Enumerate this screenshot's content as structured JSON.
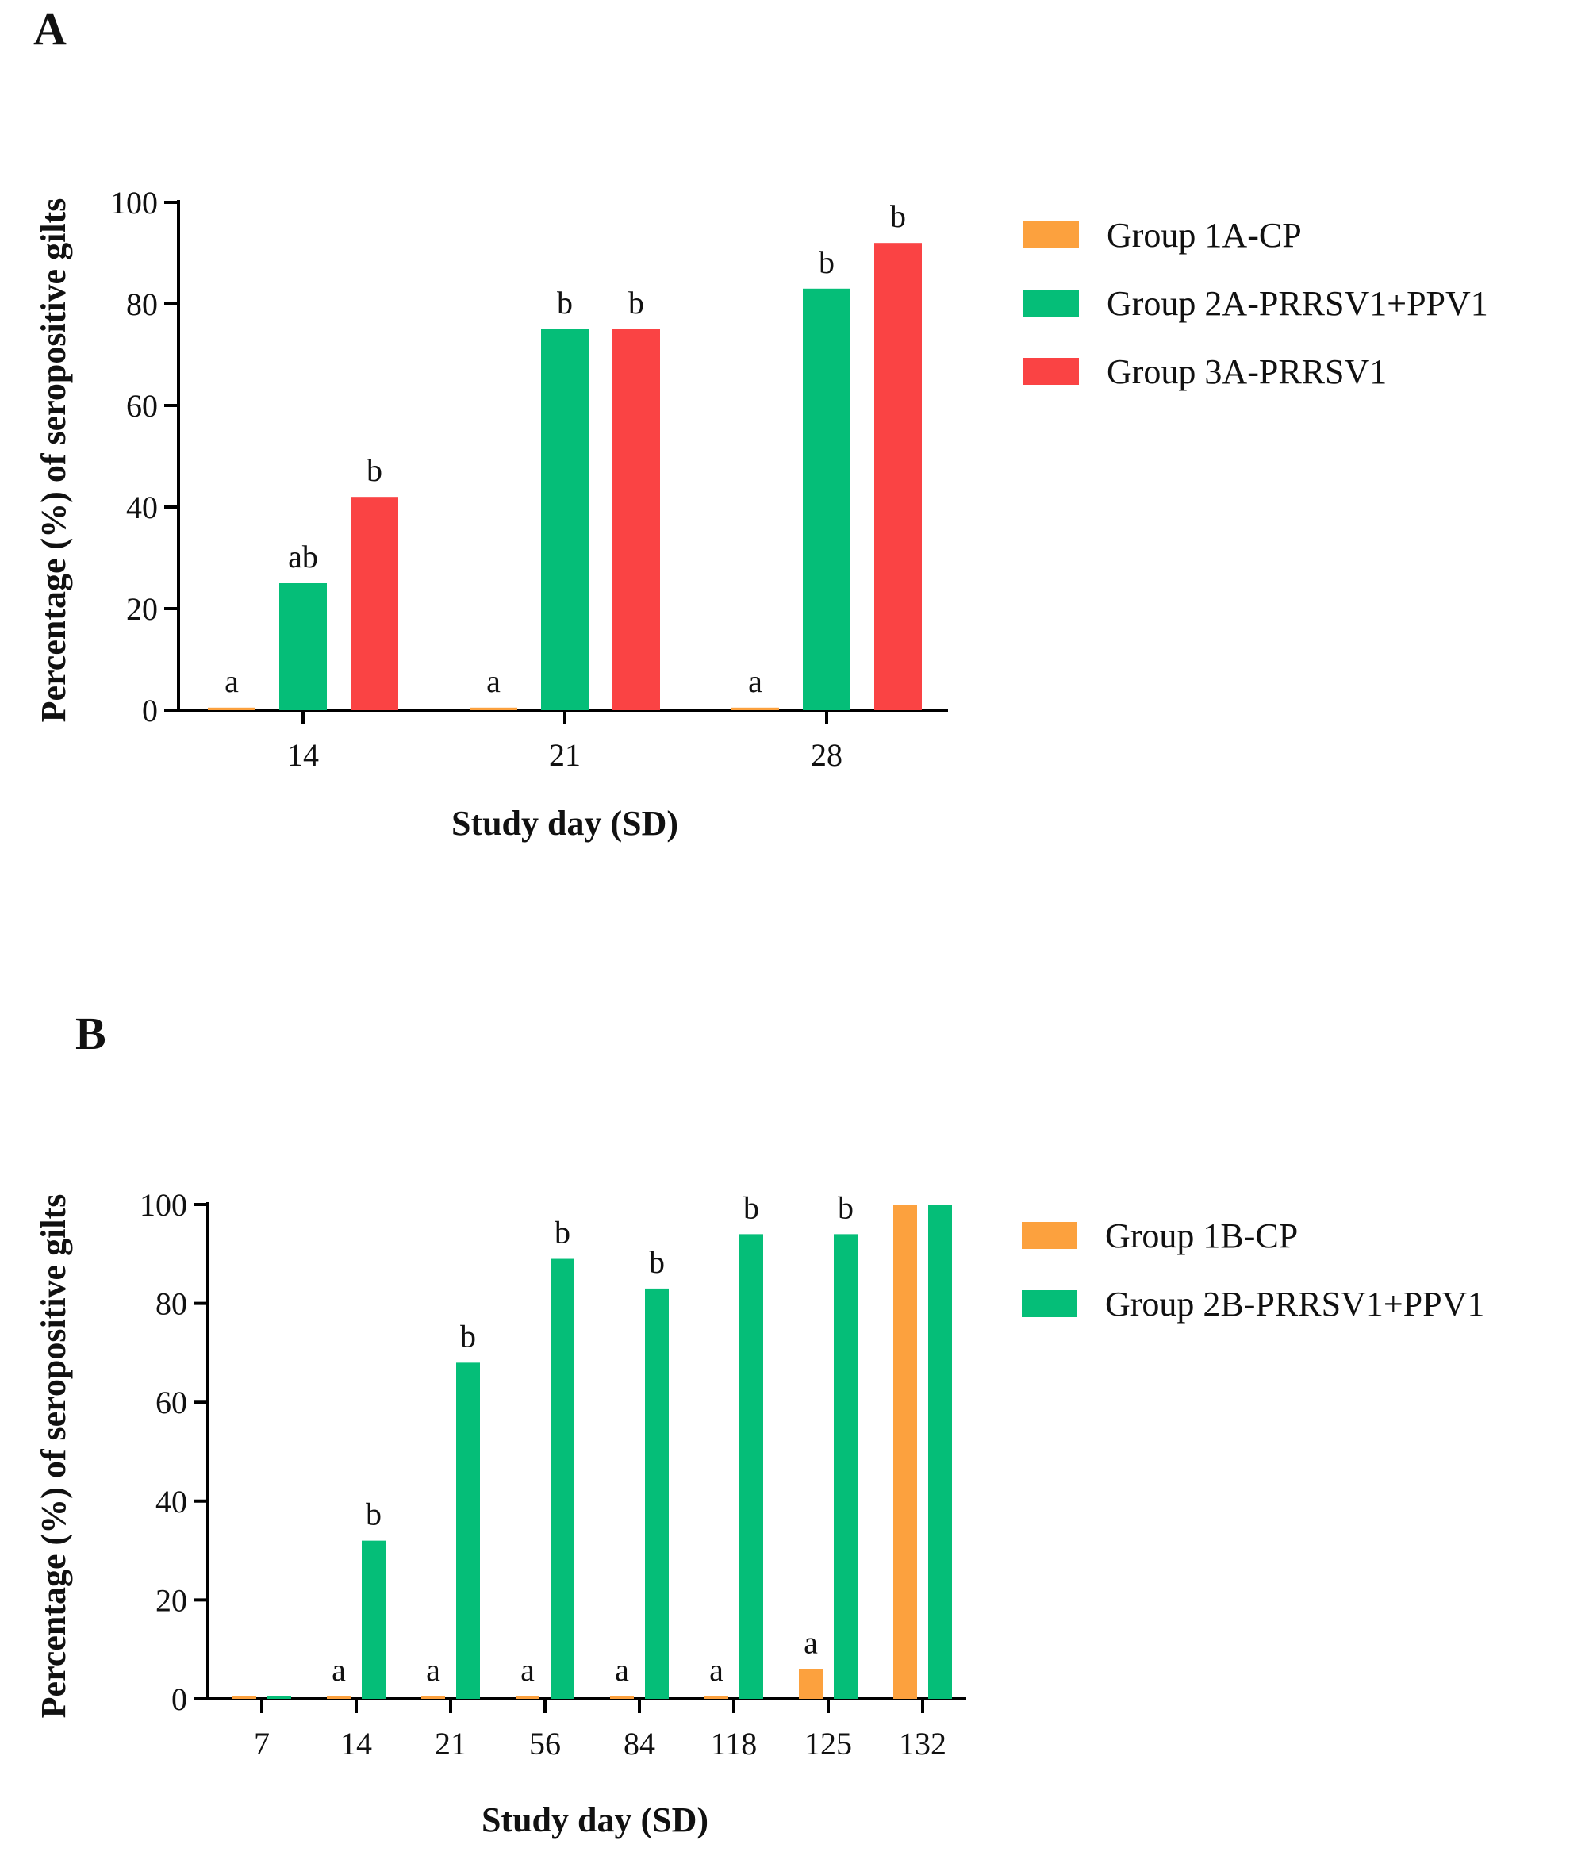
{
  "colors": {
    "orange": "#FCA13E",
    "green": "#05BE78",
    "red": "#FA4344",
    "axis": "#000000"
  },
  "chart_data": [
    {
      "panel": "A",
      "type": "bar",
      "xlabel": "Study day (SD)",
      "ylabel": "Percentage (%) of seropositive gilts",
      "ylim": [
        0,
        100
      ],
      "yticks": [
        "0",
        "20",
        "40",
        "60",
        "80",
        "100"
      ],
      "categories": [
        "14",
        "21",
        "28"
      ],
      "legend_position": "right",
      "series": [
        {
          "name": "Group 1A-CP",
          "color": "#FCA13E",
          "values": [
            0.5,
            0.5,
            0.5
          ],
          "labels": [
            "a",
            "a",
            "a"
          ]
        },
        {
          "name": "Group 2A-PRRSV1+PPV1",
          "color": "#05BE78",
          "values": [
            25,
            75,
            83
          ],
          "labels": [
            "ab",
            "b",
            "b"
          ]
        },
        {
          "name": "Group 3A-PRRSV1",
          "color": "#FA4344",
          "values": [
            42,
            75,
            92
          ],
          "labels": [
            "b",
            "b",
            "b"
          ]
        }
      ]
    },
    {
      "panel": "B",
      "type": "bar",
      "xlabel": "Study day (SD)",
      "ylabel": "Percentage (%) of seropositive gilts",
      "ylim": [
        0,
        100
      ],
      "yticks": [
        "0",
        "20",
        "40",
        "60",
        "80",
        "100"
      ],
      "categories": [
        "7",
        "14",
        "21",
        "56",
        "84",
        "118",
        "125",
        "132"
      ],
      "legend_position": "right",
      "series": [
        {
          "name": "Group 1B-CP",
          "color": "#FCA13E",
          "values": [
            0.5,
            0.5,
            0.5,
            0.5,
            0.5,
            0.5,
            6,
            100
          ],
          "labels": [
            "",
            "a",
            "a",
            "a",
            "a",
            "a",
            "a",
            ""
          ]
        },
        {
          "name": "Group 2B-PRRSV1+PPV1",
          "color": "#05BE78",
          "values": [
            0.5,
            32,
            68,
            89,
            83,
            94,
            94,
            100
          ],
          "labels": [
            "",
            "b",
            "b",
            "b",
            "b",
            "b",
            "b",
            ""
          ]
        }
      ]
    }
  ]
}
